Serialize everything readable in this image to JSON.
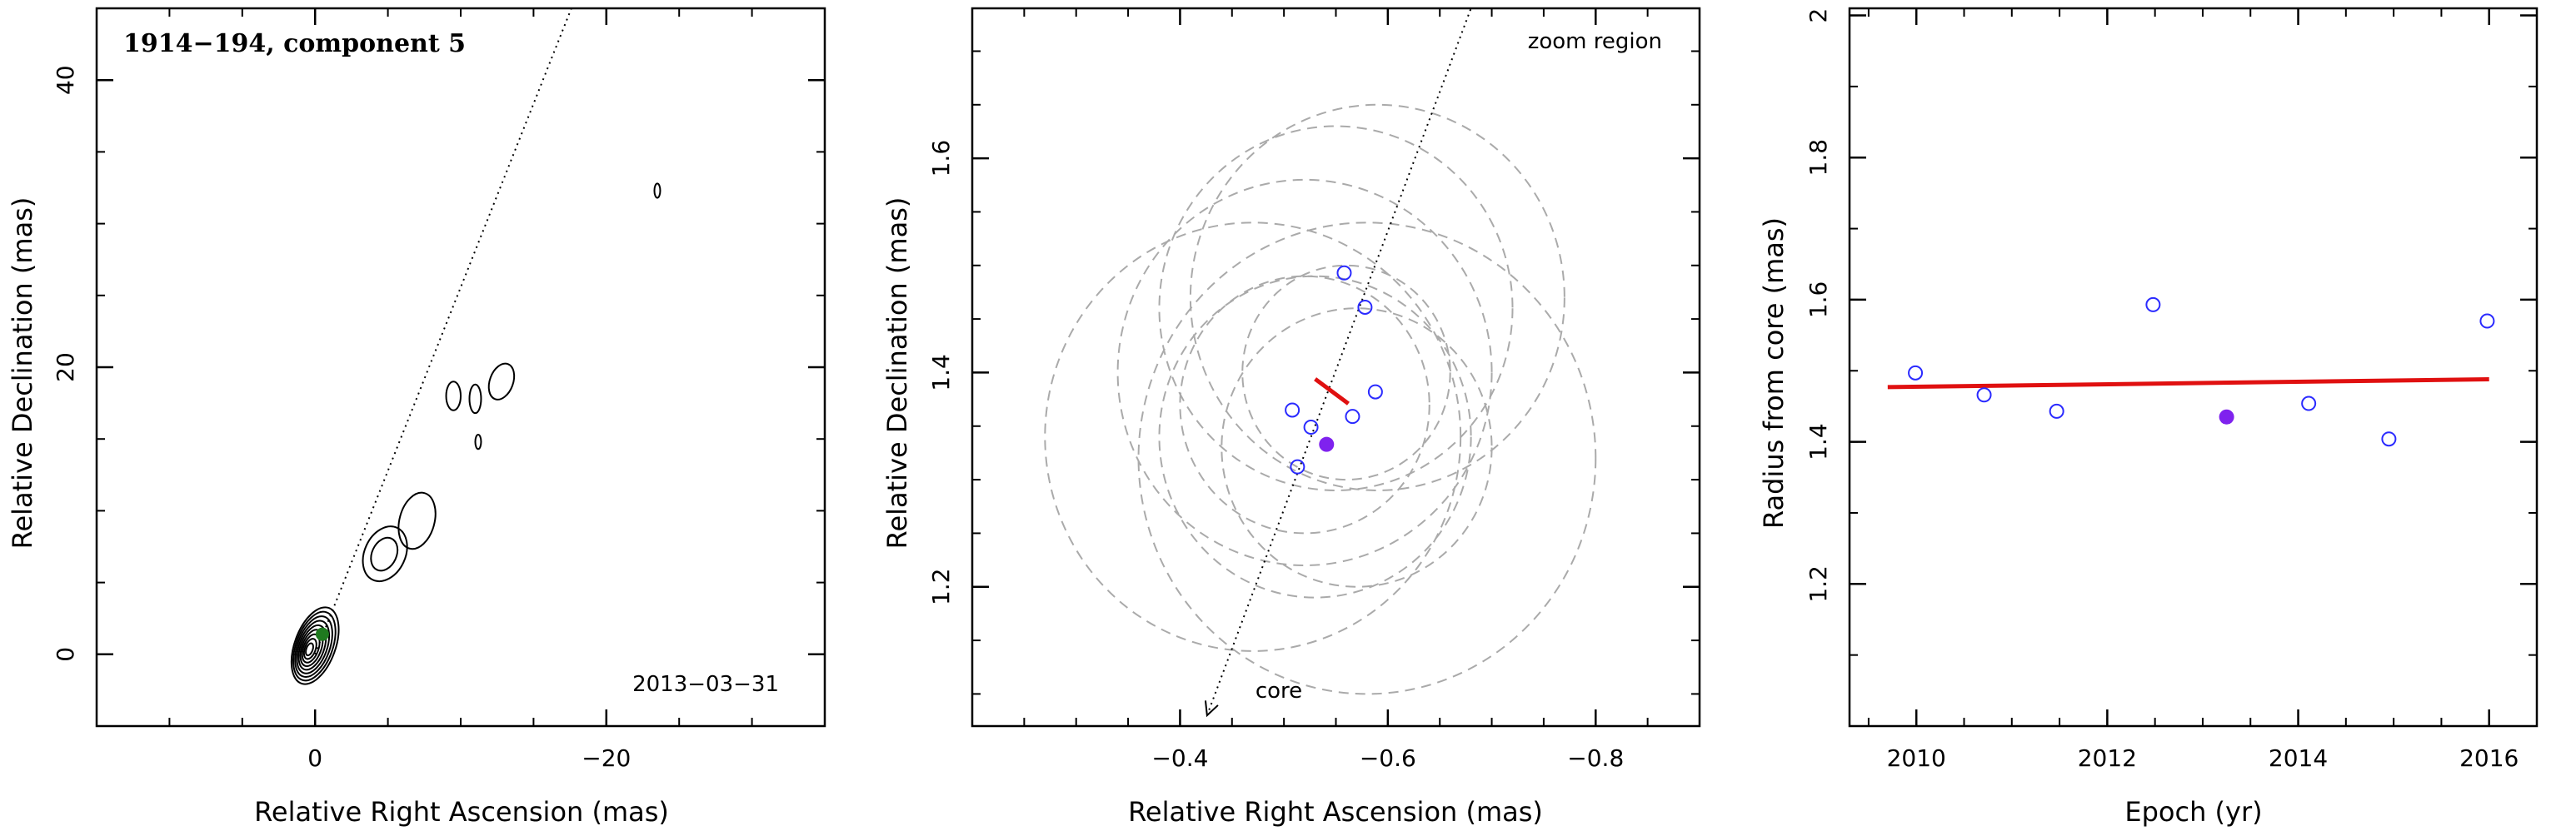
{
  "chart_data": [
    {
      "type": "contour",
      "title": "1914−194, component 5",
      "epoch_label": "2013−03−31",
      "xlabel": "Relative Right Ascension (mas)",
      "ylabel": "Relative Declination (mas)",
      "xlim": [
        15,
        -35
      ],
      "ylim": [
        -5,
        45
      ],
      "x_ticks": [
        {
          "value": 0,
          "label": "0"
        },
        {
          "value": -20,
          "label": "−20"
        }
      ],
      "y_ticks": [
        {
          "value": 0,
          "label": "0"
        },
        {
          "value": 20,
          "label": "20"
        },
        {
          "value": 40,
          "label": "40"
        }
      ],
      "jet_axis_line": {
        "from": [
          0,
          0
        ],
        "to": [
          -17.6,
          45
        ]
      },
      "marker_color": "#1f7a1f",
      "marker": {
        "x": -0.5,
        "y": 1.4
      },
      "contour_blobs": [
        {
          "cx": 0.0,
          "cy": 0.6,
          "rx": 1.4,
          "ry": 2.8,
          "levels": 9,
          "rotate": 20
        },
        {
          "cx": -4.8,
          "cy": 7.0,
          "rx": 1.4,
          "ry": 2.0,
          "levels": 2,
          "rotate": 25
        },
        {
          "cx": -7.0,
          "cy": 9.3,
          "rx": 1.2,
          "ry": 2.0,
          "levels": 1,
          "rotate": 15
        },
        {
          "cx": -9.5,
          "cy": 18.0,
          "rx": 0.5,
          "ry": 1.0,
          "levels": 1,
          "rotate": 0
        },
        {
          "cx": -11.0,
          "cy": 17.8,
          "rx": 0.4,
          "ry": 1.0,
          "levels": 1,
          "rotate": 0
        },
        {
          "cx": -12.8,
          "cy": 19.0,
          "rx": 0.8,
          "ry": 1.3,
          "levels": 1,
          "rotate": 20
        },
        {
          "cx": -11.2,
          "cy": 14.8,
          "rx": 0.2,
          "ry": 0.5,
          "levels": 1,
          "rotate": 0
        },
        {
          "cx": -23.5,
          "cy": 32.3,
          "rx": 0.2,
          "ry": 0.5,
          "levels": 1,
          "rotate": 0
        }
      ]
    },
    {
      "type": "scatter",
      "annotation": "zoom region",
      "core_label": "core",
      "xlabel": "Relative Right Ascension (mas)",
      "ylabel": "Relative Declination (mas)",
      "xlim": [
        -0.2,
        -0.9
      ],
      "ylim": [
        1.07,
        1.74
      ],
      "x_ticks": [
        {
          "value": -0.4,
          "label": "−0.4"
        },
        {
          "value": -0.6,
          "label": "−0.6"
        },
        {
          "value": -0.8,
          "label": "−0.8"
        }
      ],
      "y_ticks": [
        {
          "value": 1.2,
          "label": "1.2"
        },
        {
          "value": 1.4,
          "label": "1.4"
        },
        {
          "value": 1.6,
          "label": "1.6"
        }
      ],
      "points_open_color": "#2a2aff",
      "point_highlight_color": "#7f22ee",
      "fit_color": "#e01010",
      "circle_color": "#aaaaaa",
      "axis_line": {
        "from": [
          -0.426,
          1.08
        ],
        "to": [
          -0.68,
          1.74
        ]
      },
      "points_open": [
        {
          "x": -0.558,
          "y": 1.493
        },
        {
          "x": -0.578,
          "y": 1.461
        },
        {
          "x": -0.508,
          "y": 1.365
        },
        {
          "x": -0.526,
          "y": 1.349
        },
        {
          "x": -0.566,
          "y": 1.359
        },
        {
          "x": -0.588,
          "y": 1.382
        },
        {
          "x": -0.513,
          "y": 1.312
        }
      ],
      "point_highlight": {
        "x": -0.541,
        "y": 1.333
      },
      "fit_segment": {
        "from": [
          -0.53,
          1.394
        ],
        "to": [
          -0.562,
          1.371
        ]
      },
      "circles": [
        {
          "cx": -0.55,
          "cy": 1.46,
          "r": 0.17
        },
        {
          "cx": -0.59,
          "cy": 1.47,
          "r": 0.18
        },
        {
          "cx": -0.52,
          "cy": 1.4,
          "r": 0.18
        },
        {
          "cx": -0.47,
          "cy": 1.34,
          "r": 0.2
        },
        {
          "cx": -0.58,
          "cy": 1.32,
          "r": 0.22
        },
        {
          "cx": -0.53,
          "cy": 1.34,
          "r": 0.15
        },
        {
          "cx": -0.57,
          "cy": 1.33,
          "r": 0.13
        },
        {
          "cx": -0.52,
          "cy": 1.37,
          "r": 0.12
        },
        {
          "cx": -0.56,
          "cy": 1.4,
          "r": 0.1
        }
      ]
    },
    {
      "type": "scatter",
      "xlabel": "Epoch (yr)",
      "ylabel": "Radius from core (mas)",
      "xlim": [
        2009.3,
        2016.5
      ],
      "ylim": [
        1.0,
        2.01
      ],
      "x_ticks": [
        {
          "value": 2010,
          "label": "2010"
        },
        {
          "value": 2012,
          "label": "2012"
        },
        {
          "value": 2014,
          "label": "2014"
        },
        {
          "value": 2016,
          "label": "2016"
        }
      ],
      "y_ticks": [
        {
          "value": 1.2,
          "label": "1.2"
        },
        {
          "value": 1.4,
          "label": "1.4"
        },
        {
          "value": 1.6,
          "label": "1.6"
        },
        {
          "value": 1.8,
          "label": "1.8"
        },
        {
          "value": 2.0,
          "label": "2"
        }
      ],
      "points_open_color": "#2a2aff",
      "point_highlight_color": "#7f22ee",
      "fit_color": "#e01010",
      "points_open": [
        {
          "x": 2009.99,
          "y": 1.497
        },
        {
          "x": 2010.71,
          "y": 1.466
        },
        {
          "x": 2011.47,
          "y": 1.443
        },
        {
          "x": 2012.48,
          "y": 1.593
        },
        {
          "x": 2014.11,
          "y": 1.454
        },
        {
          "x": 2014.95,
          "y": 1.404
        },
        {
          "x": 2015.98,
          "y": 1.57
        }
      ],
      "point_highlight": {
        "x": 2013.25,
        "y": 1.435
      },
      "fit_line": {
        "from": [
          2009.7,
          1.477
        ],
        "to": [
          2016.0,
          1.488
        ]
      }
    }
  ]
}
